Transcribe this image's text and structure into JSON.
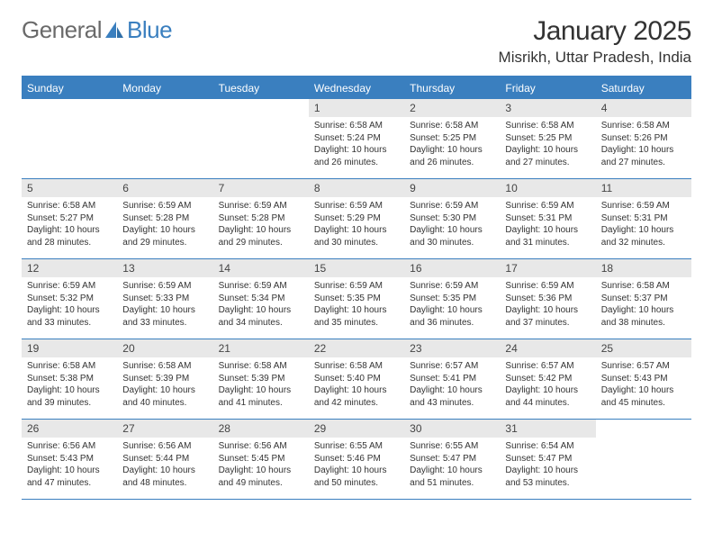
{
  "brand": {
    "part1": "General",
    "part2": "Blue"
  },
  "title": "January 2025",
  "location": "Misrikh, Uttar Pradesh, India",
  "colors": {
    "accent": "#3a7fbf",
    "header_bg": "#3a7fbf",
    "daynum_bg": "#e8e8e8",
    "text": "#333333",
    "page_bg": "#ffffff"
  },
  "weekdays": [
    "Sunday",
    "Monday",
    "Tuesday",
    "Wednesday",
    "Thursday",
    "Friday",
    "Saturday"
  ],
  "weeks": [
    [
      {
        "num": "",
        "lines": []
      },
      {
        "num": "",
        "lines": []
      },
      {
        "num": "",
        "lines": []
      },
      {
        "num": "1",
        "lines": [
          "Sunrise: 6:58 AM",
          "Sunset: 5:24 PM",
          "Daylight: 10 hours and 26 minutes."
        ]
      },
      {
        "num": "2",
        "lines": [
          "Sunrise: 6:58 AM",
          "Sunset: 5:25 PM",
          "Daylight: 10 hours and 26 minutes."
        ]
      },
      {
        "num": "3",
        "lines": [
          "Sunrise: 6:58 AM",
          "Sunset: 5:25 PM",
          "Daylight: 10 hours and 27 minutes."
        ]
      },
      {
        "num": "4",
        "lines": [
          "Sunrise: 6:58 AM",
          "Sunset: 5:26 PM",
          "Daylight: 10 hours and 27 minutes."
        ]
      }
    ],
    [
      {
        "num": "5",
        "lines": [
          "Sunrise: 6:58 AM",
          "Sunset: 5:27 PM",
          "Daylight: 10 hours and 28 minutes."
        ]
      },
      {
        "num": "6",
        "lines": [
          "Sunrise: 6:59 AM",
          "Sunset: 5:28 PM",
          "Daylight: 10 hours and 29 minutes."
        ]
      },
      {
        "num": "7",
        "lines": [
          "Sunrise: 6:59 AM",
          "Sunset: 5:28 PM",
          "Daylight: 10 hours and 29 minutes."
        ]
      },
      {
        "num": "8",
        "lines": [
          "Sunrise: 6:59 AM",
          "Sunset: 5:29 PM",
          "Daylight: 10 hours and 30 minutes."
        ]
      },
      {
        "num": "9",
        "lines": [
          "Sunrise: 6:59 AM",
          "Sunset: 5:30 PM",
          "Daylight: 10 hours and 30 minutes."
        ]
      },
      {
        "num": "10",
        "lines": [
          "Sunrise: 6:59 AM",
          "Sunset: 5:31 PM",
          "Daylight: 10 hours and 31 minutes."
        ]
      },
      {
        "num": "11",
        "lines": [
          "Sunrise: 6:59 AM",
          "Sunset: 5:31 PM",
          "Daylight: 10 hours and 32 minutes."
        ]
      }
    ],
    [
      {
        "num": "12",
        "lines": [
          "Sunrise: 6:59 AM",
          "Sunset: 5:32 PM",
          "Daylight: 10 hours and 33 minutes."
        ]
      },
      {
        "num": "13",
        "lines": [
          "Sunrise: 6:59 AM",
          "Sunset: 5:33 PM",
          "Daylight: 10 hours and 33 minutes."
        ]
      },
      {
        "num": "14",
        "lines": [
          "Sunrise: 6:59 AM",
          "Sunset: 5:34 PM",
          "Daylight: 10 hours and 34 minutes."
        ]
      },
      {
        "num": "15",
        "lines": [
          "Sunrise: 6:59 AM",
          "Sunset: 5:35 PM",
          "Daylight: 10 hours and 35 minutes."
        ]
      },
      {
        "num": "16",
        "lines": [
          "Sunrise: 6:59 AM",
          "Sunset: 5:35 PM",
          "Daylight: 10 hours and 36 minutes."
        ]
      },
      {
        "num": "17",
        "lines": [
          "Sunrise: 6:59 AM",
          "Sunset: 5:36 PM",
          "Daylight: 10 hours and 37 minutes."
        ]
      },
      {
        "num": "18",
        "lines": [
          "Sunrise: 6:58 AM",
          "Sunset: 5:37 PM",
          "Daylight: 10 hours and 38 minutes."
        ]
      }
    ],
    [
      {
        "num": "19",
        "lines": [
          "Sunrise: 6:58 AM",
          "Sunset: 5:38 PM",
          "Daylight: 10 hours and 39 minutes."
        ]
      },
      {
        "num": "20",
        "lines": [
          "Sunrise: 6:58 AM",
          "Sunset: 5:39 PM",
          "Daylight: 10 hours and 40 minutes."
        ]
      },
      {
        "num": "21",
        "lines": [
          "Sunrise: 6:58 AM",
          "Sunset: 5:39 PM",
          "Daylight: 10 hours and 41 minutes."
        ]
      },
      {
        "num": "22",
        "lines": [
          "Sunrise: 6:58 AM",
          "Sunset: 5:40 PM",
          "Daylight: 10 hours and 42 minutes."
        ]
      },
      {
        "num": "23",
        "lines": [
          "Sunrise: 6:57 AM",
          "Sunset: 5:41 PM",
          "Daylight: 10 hours and 43 minutes."
        ]
      },
      {
        "num": "24",
        "lines": [
          "Sunrise: 6:57 AM",
          "Sunset: 5:42 PM",
          "Daylight: 10 hours and 44 minutes."
        ]
      },
      {
        "num": "25",
        "lines": [
          "Sunrise: 6:57 AM",
          "Sunset: 5:43 PM",
          "Daylight: 10 hours and 45 minutes."
        ]
      }
    ],
    [
      {
        "num": "26",
        "lines": [
          "Sunrise: 6:56 AM",
          "Sunset: 5:43 PM",
          "Daylight: 10 hours and 47 minutes."
        ]
      },
      {
        "num": "27",
        "lines": [
          "Sunrise: 6:56 AM",
          "Sunset: 5:44 PM",
          "Daylight: 10 hours and 48 minutes."
        ]
      },
      {
        "num": "28",
        "lines": [
          "Sunrise: 6:56 AM",
          "Sunset: 5:45 PM",
          "Daylight: 10 hours and 49 minutes."
        ]
      },
      {
        "num": "29",
        "lines": [
          "Sunrise: 6:55 AM",
          "Sunset: 5:46 PM",
          "Daylight: 10 hours and 50 minutes."
        ]
      },
      {
        "num": "30",
        "lines": [
          "Sunrise: 6:55 AM",
          "Sunset: 5:47 PM",
          "Daylight: 10 hours and 51 minutes."
        ]
      },
      {
        "num": "31",
        "lines": [
          "Sunrise: 6:54 AM",
          "Sunset: 5:47 PM",
          "Daylight: 10 hours and 53 minutes."
        ]
      },
      {
        "num": "",
        "lines": []
      }
    ]
  ]
}
